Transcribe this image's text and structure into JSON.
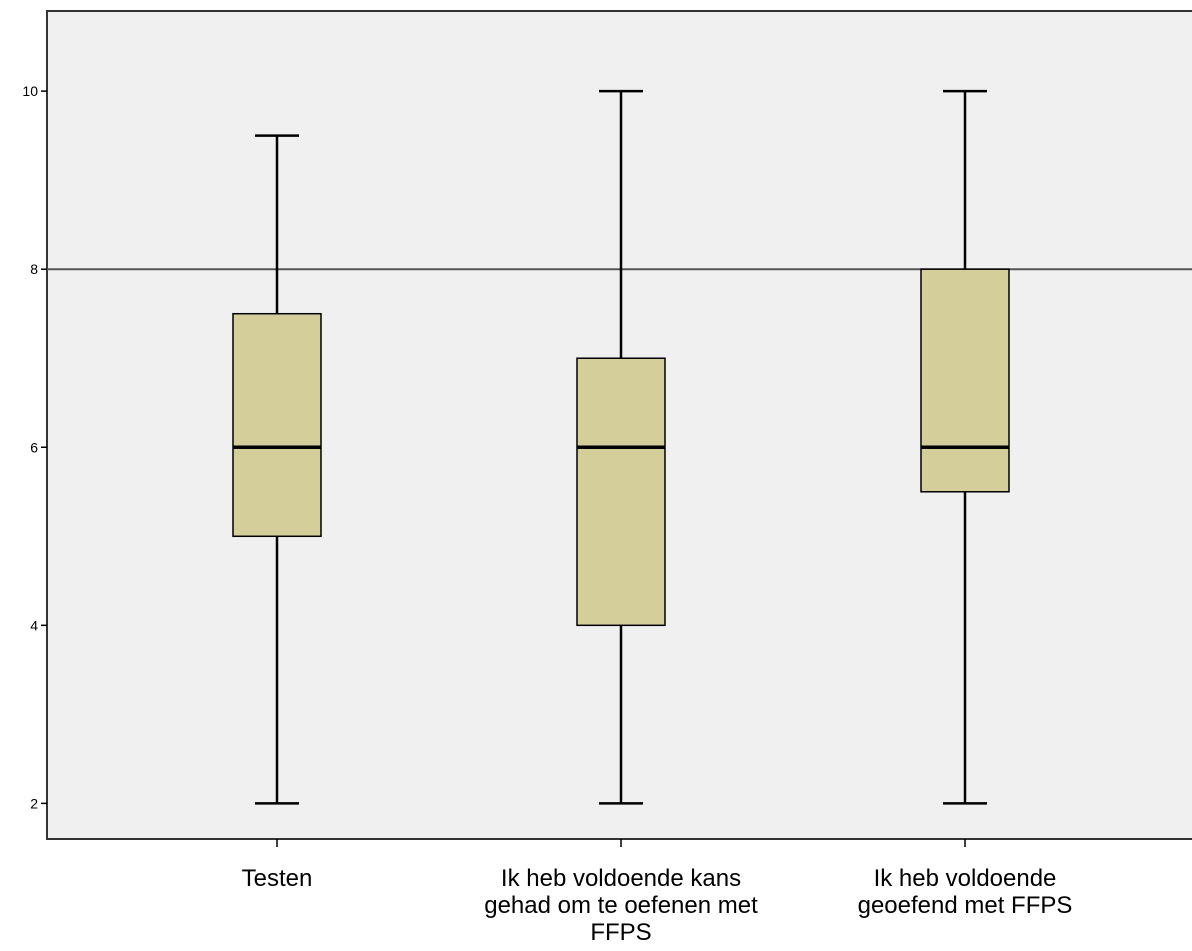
{
  "chart_data": {
    "type": "boxplot",
    "title": "",
    "xlabel": "",
    "ylabel": "",
    "categories": [
      [
        "Testen"
      ],
      [
        "Ik heb voldoende kans",
        "gehad om te oefenen met",
        "FFPS"
      ],
      [
        "Ik heb voldoende",
        "geoefend met FFPS"
      ]
    ],
    "boxes": [
      {
        "min": 2,
        "q1": 5,
        "median": 6,
        "q3": 7.5,
        "max": 9.5
      },
      {
        "min": 2,
        "q1": 4,
        "median": 6,
        "q3": 7,
        "max": 10
      },
      {
        "min": 2,
        "q1": 5.5,
        "median": 6,
        "q3": 8,
        "max": 10
      }
    ],
    "reference_line": 8,
    "yticks": [
      2,
      4,
      6,
      8,
      10
    ],
    "ylim": [
      1.6,
      10.9
    ],
    "grid": false,
    "colors": {
      "plot_background": "#f0f0f0",
      "box_fill": "#d3ce9a",
      "stroke": "#000000",
      "reference_line": "#555555"
    }
  }
}
